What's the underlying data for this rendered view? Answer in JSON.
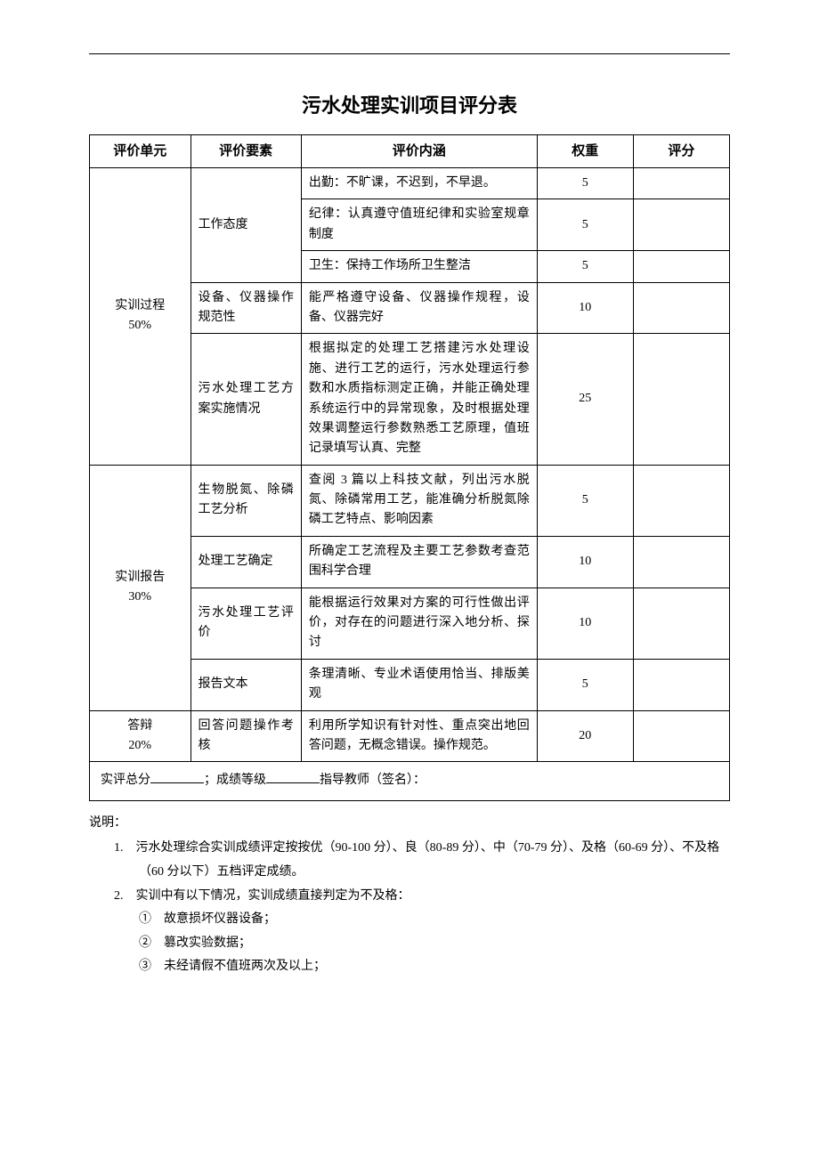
{
  "title": "污水处理实训项目评分表",
  "headers": {
    "unit": "评价单元",
    "element": "评价要素",
    "content": "评价内涵",
    "weight": "权重",
    "score": "评分"
  },
  "sections": [
    {
      "unit_label": "实训过程",
      "unit_percent": "50%",
      "rows": [
        {
          "element": "工作态度",
          "content": "出勤：不旷课，不迟到，不早退。",
          "weight": "5",
          "rowspan_element": 3
        },
        {
          "element": "",
          "content": "纪律：认真遵守值班纪律和实验室规章制度",
          "weight": "5"
        },
        {
          "element": "",
          "content": "卫生：保持工作场所卫生整洁",
          "weight": "5"
        },
        {
          "element": "设备、仪器操作规范性",
          "content": "能严格遵守设备、仪器操作规程，设备、仪器完好",
          "weight": "10"
        },
        {
          "element": "污水处理工艺方案实施情况",
          "content": "根据拟定的处理工艺搭建污水处理设施、进行工艺的运行，污水处理运行参数和水质指标测定正确，并能正确处理系统运行中的异常现象，及时根据处理效果调整运行参数熟悉工艺原理，值班记录填写认真、完整",
          "weight": "25"
        }
      ]
    },
    {
      "unit_label": "实训报告",
      "unit_percent": "30%",
      "rows": [
        {
          "element": "生物脱氮、除磷工艺分析",
          "content": "查阅 3 篇以上科技文献，列出污水脱氮、除磷常用工艺，能准确分析脱氮除磷工艺特点、影响因素",
          "weight": "5"
        },
        {
          "element": "处理工艺确定",
          "content": "所确定工艺流程及主要工艺参数考查范围科学合理",
          "weight": "10"
        },
        {
          "element": "污水处理工艺评价",
          "content": "能根据运行效果对方案的可行性做出评价，对存在的问题进行深入地分析、探讨",
          "weight": "10"
        },
        {
          "element": "报告文本",
          "content": "条理清晰、专业术语使用恰当、排版美观",
          "weight": "5"
        }
      ]
    },
    {
      "unit_label": "答辩",
      "unit_percent": "20%",
      "rows": [
        {
          "element": "回答问题操作考核",
          "content": "利用所学知识有针对性、重点突出地回答问题，无概念错误。操作规范。",
          "weight": "20"
        }
      ]
    }
  ],
  "footer_row": {
    "prefix": "实评总分",
    "mid": "；成绩等级",
    "suffix": "指导教师（签名）："
  },
  "notes": {
    "title": "说明：",
    "items": [
      "1.　污水处理综合实训成绩评定按按优（90-100 分）、良（80-89 分）、中（70-79 分）、及格（60-69 分）、不及格（60 分以下）五档评定成绩。",
      "2.　实训中有以下情况，实训成绩直接判定为不及格："
    ],
    "subs": [
      "①　故意损坏仪器设备；",
      "②　篡改实验数据；",
      "③　未经请假不值班两次及以上；"
    ]
  }
}
